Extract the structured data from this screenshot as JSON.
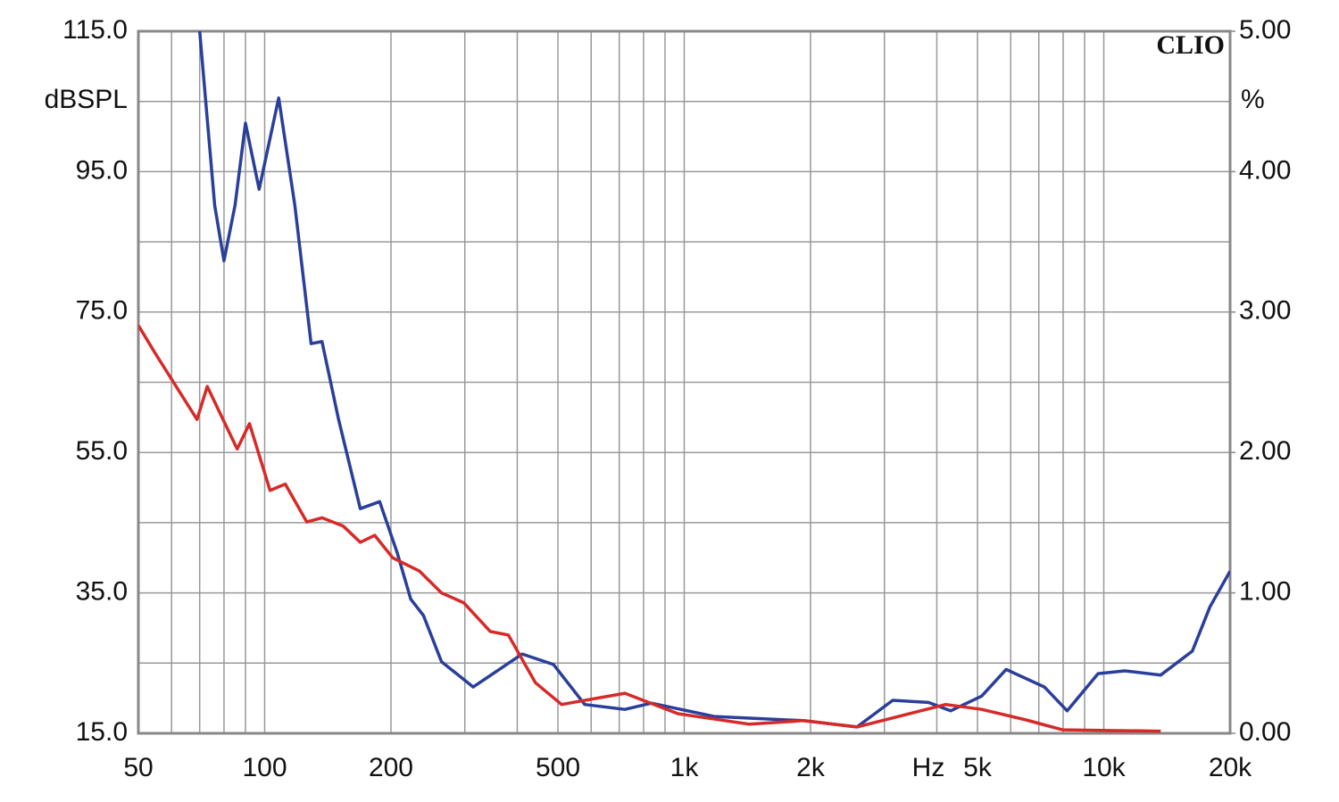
{
  "chart_data": {
    "type": "line",
    "title": "CLIO",
    "y_label": "dBSPL",
    "y2_label": "%",
    "x_label": "Hz",
    "xscale": "log",
    "xlim": [
      50,
      20000
    ],
    "xticks": [
      50,
      100,
      200,
      500,
      {
        "value": 1000,
        "label": "1k"
      },
      {
        "value": 2000,
        "label": "2k"
      },
      {
        "value": 5000,
        "label": "5k"
      },
      {
        "value": 10000,
        "label": "10k"
      },
      {
        "value": 20000,
        "label": "20k"
      }
    ],
    "xminor_ticks": [
      60,
      70,
      80,
      90,
      300,
      400,
      600,
      700,
      800,
      900,
      3000,
      4000,
      6000,
      7000,
      8000,
      9000
    ],
    "ylim": [
      15,
      115
    ],
    "yticks": [
      {
        "value": 15,
        "label": "15.0"
      },
      {
        "value": 35,
        "label": "35.0"
      },
      {
        "value": 55,
        "label": "55.0"
      },
      {
        "value": 75,
        "label": "75.0"
      },
      {
        "value": 95,
        "label": "95.0"
      },
      {
        "value": 115,
        "label": "115.0"
      }
    ],
    "yminor_ticks": [
      25,
      45,
      65,
      85,
      105
    ],
    "y2lim": [
      0,
      5
    ],
    "y2ticks": [
      {
        "value": 0,
        "label": "0.00"
      },
      {
        "value": 1,
        "label": "1.00"
      },
      {
        "value": 2,
        "label": "2.00"
      },
      {
        "value": 3,
        "label": "3.00"
      },
      {
        "value": 4,
        "label": "4.00"
      },
      {
        "value": 5,
        "label": "5.00"
      }
    ],
    "grid": true,
    "series": [
      {
        "color": "#2a3f9a",
        "x": [
          70,
          76,
          80,
          85,
          90,
          97,
          108,
          118,
          129,
          137,
          150,
          169,
          188,
          207,
          223,
          239,
          264,
          314,
          411,
          488,
          579,
          722,
          835,
          1178,
          1923,
          2580,
          3140,
          3820,
          4315,
          5115,
          5850,
          7220,
          8180,
          9690,
          11220,
          13670,
          16260,
          17900,
          20000
        ],
        "values": [
          115,
          90.2,
          82.3,
          90.2,
          101.9,
          92.5,
          105.5,
          90.2,
          70.5,
          70.8,
          59.7,
          47.0,
          48.0,
          40.7,
          34.1,
          31.8,
          25.2,
          21.6,
          26.3,
          24.8,
          19.1,
          18.4,
          19.3,
          17.4,
          16.8,
          15.9,
          19.7,
          19.4,
          18.2,
          20.3,
          24.1,
          21.6,
          18.2,
          23.5,
          23.9,
          23.3,
          26.7,
          33.0,
          38.1
        ]
      },
      {
        "color": "#d62a28",
        "x": [
          50,
          55,
          69,
          73,
          86,
          92,
          103,
          112,
          126,
          137,
          154,
          169,
          183,
          202,
          234,
          264,
          298,
          345,
          381,
          442,
          510,
          722,
          966,
          1430,
          1923,
          2580,
          4200,
          5115,
          6530,
          7970,
          13670
        ],
        "values": [
          73.1,
          69.0,
          59.7,
          64.4,
          55.5,
          59.1,
          49.6,
          50.5,
          45.1,
          45.7,
          44.5,
          42.2,
          43.2,
          40.0,
          38.1,
          35.0,
          33.6,
          29.5,
          29.0,
          22.2,
          19.1,
          20.7,
          17.8,
          16.3,
          16.8,
          15.9,
          19.1,
          18.4,
          16.9,
          15.5,
          15.3
        ]
      }
    ]
  }
}
